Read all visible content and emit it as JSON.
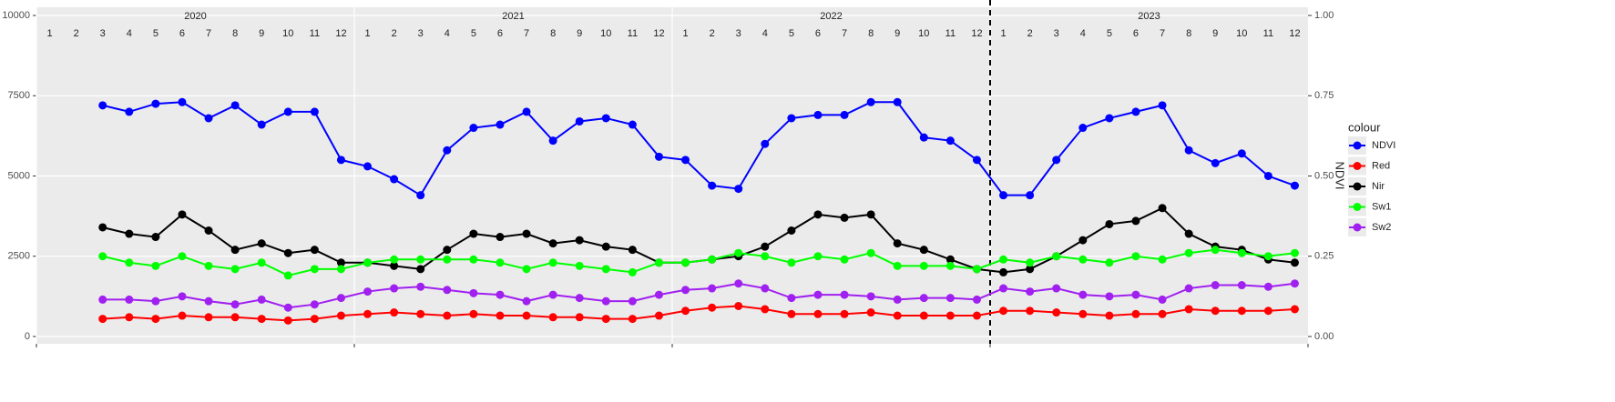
{
  "chart_data": {
    "type": "line",
    "years": [
      "2020",
      "2021",
      "2022",
      "2023"
    ],
    "categories": [
      "1",
      "2",
      "3",
      "4",
      "5",
      "6",
      "7",
      "8",
      "9",
      "10",
      "11",
      "12",
      "1",
      "2",
      "3",
      "4",
      "5",
      "6",
      "7",
      "8",
      "9",
      "10",
      "11",
      "12",
      "1",
      "2",
      "3",
      "4",
      "5",
      "6",
      "7",
      "8",
      "9",
      "10",
      "11",
      "12",
      "1",
      "2",
      "3",
      "4",
      "5",
      "6",
      "7",
      "8",
      "9",
      "10",
      "11",
      "12"
    ],
    "series": [
      {
        "name": "NDVI",
        "color": "#0000ff",
        "axis": "y2",
        "values": [
          null,
          null,
          0.72,
          0.7,
          0.725,
          0.73,
          0.68,
          0.72,
          0.66,
          0.7,
          0.7,
          0.55,
          0.53,
          0.49,
          0.44,
          0.58,
          0.65,
          0.66,
          0.7,
          0.61,
          0.67,
          0.68,
          0.66,
          0.56,
          0.55,
          0.47,
          0.46,
          0.6,
          0.68,
          0.69,
          0.69,
          0.73,
          0.73,
          0.62,
          0.61,
          0.55,
          0.44,
          0.44,
          0.55,
          0.65,
          0.68,
          0.7,
          0.72,
          0.58,
          0.54,
          0.57,
          0.5,
          0.47
        ]
      },
      {
        "name": "Red",
        "color": "#ff0000",
        "values": [
          null,
          null,
          550,
          600,
          550,
          650,
          600,
          600,
          550,
          500,
          550,
          650,
          700,
          750,
          700,
          650,
          700,
          650,
          650,
          600,
          600,
          550,
          550,
          650,
          800,
          900,
          950,
          850,
          700,
          700,
          700,
          750,
          650,
          650,
          650,
          650,
          800,
          800,
          750,
          700,
          650,
          700,
          700,
          850,
          800,
          800,
          800,
          850
        ]
      },
      {
        "name": "Nir",
        "color": "#000000",
        "values": [
          null,
          null,
          3400,
          3200,
          3100,
          3800,
          3300,
          2700,
          2900,
          2600,
          2700,
          2300,
          2300,
          2200,
          2100,
          2700,
          3200,
          3100,
          3200,
          2900,
          3000,
          2800,
          2700,
          2300,
          2300,
          2400,
          2500,
          2800,
          3300,
          3800,
          3700,
          3800,
          2900,
          2700,
          2400,
          2100,
          2000,
          2100,
          2500,
          3000,
          3500,
          3600,
          4000,
          3200,
          2800,
          2700,
          2400,
          2300
        ]
      },
      {
        "name": "Sw1",
        "color": "#00ff00",
        "values": [
          null,
          null,
          2500,
          2300,
          2200,
          2500,
          2200,
          2100,
          2300,
          1900,
          2100,
          2100,
          2300,
          2400,
          2400,
          2400,
          2400,
          2300,
          2100,
          2300,
          2200,
          2100,
          2000,
          2300,
          2300,
          2400,
          2600,
          2500,
          2300,
          2500,
          2400,
          2600,
          2200,
          2200,
          2200,
          2100,
          2400,
          2300,
          2500,
          2400,
          2300,
          2500,
          2400,
          2600,
          2700,
          2600,
          2500,
          2600
        ]
      },
      {
        "name": "Sw2",
        "color": "#a020f0",
        "values": [
          null,
          null,
          1150,
          1150,
          1100,
          1250,
          1100,
          1000,
          1150,
          900,
          1000,
          1200,
          1400,
          1500,
          1550,
          1450,
          1350,
          1300,
          1100,
          1300,
          1200,
          1100,
          1100,
          1300,
          1450,
          1500,
          1650,
          1500,
          1200,
          1300,
          1300,
          1250,
          1150,
          1200,
          1200,
          1150,
          1500,
          1400,
          1500,
          1300,
          1250,
          1300,
          1150,
          1500,
          1600,
          1600,
          1550,
          1650
        ]
      }
    ],
    "ylim": [
      -227,
      10255
    ],
    "yticks": [
      0,
      2500,
      5000,
      7500,
      10000
    ],
    "y2lim": [
      -0.0227,
      1.0255
    ],
    "y2ticks": [
      {
        "value": 0,
        "label": "0.00"
      },
      {
        "value": 0.25,
        "label": "0.25"
      },
      {
        "value": 0.5,
        "label": "0.50"
      },
      {
        "value": 0.75,
        "label": "0.75"
      },
      {
        "value": 1,
        "label": "1.00"
      }
    ],
    "y2label": "NDVI",
    "legend_title": "colour",
    "legend": "right",
    "grid": true
  }
}
